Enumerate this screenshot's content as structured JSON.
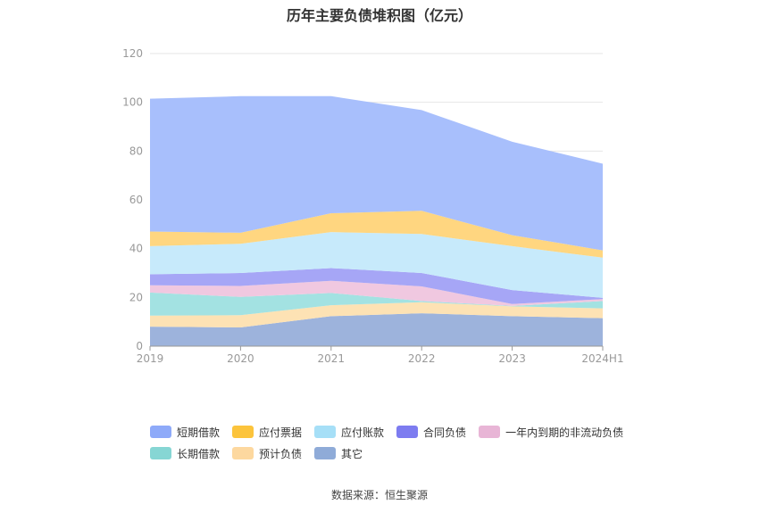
{
  "chart_data": {
    "type": "area",
    "stacked": true,
    "title": "历年主要负债堆积图（亿元）",
    "categories": [
      "2019",
      "2020",
      "2021",
      "2022",
      "2023",
      "2024H1"
    ],
    "ylim": [
      0,
      120
    ],
    "yticks": [
      0,
      20,
      40,
      60,
      80,
      100,
      120
    ],
    "grid": true,
    "legend_position": "bottom",
    "series": [
      {
        "name": "其它",
        "color": "#9db3dc",
        "values": [
          8,
          7.7,
          12.3,
          13.5,
          12.3,
          11.5
        ]
      },
      {
        "name": "预计负债",
        "color": "#fde2b4",
        "values": [
          4.5,
          5,
          4.5,
          4.5,
          4,
          4
        ]
      },
      {
        "name": "长期借款",
        "color": "#a3e2e2",
        "values": [
          9.5,
          7.5,
          5,
          0.5,
          0.2,
          3
        ]
      },
      {
        "name": "一年内到期的非流动负债",
        "color": "#f0c8e0",
        "values": [
          3,
          4.5,
          5,
          6,
          0.8,
          0.8
        ]
      },
      {
        "name": "合同负债",
        "color": "#a6a6f6",
        "values": [
          4.5,
          5.3,
          5.2,
          5.5,
          5.7,
          0.5
        ]
      },
      {
        "name": "应付账款",
        "color": "#c7eafb",
        "values": [
          11.5,
          12,
          14.8,
          16,
          18,
          16.5
        ]
      },
      {
        "name": "应付票据",
        "color": "#ffd680",
        "values": [
          6,
          4.5,
          7.7,
          9.5,
          4.5,
          3
        ]
      },
      {
        "name": "短期借款",
        "color": "#a8bffc",
        "values": [
          54.5,
          56,
          48,
          41.3,
          38.3,
          35.5
        ]
      }
    ]
  },
  "legend": {
    "row1": [
      {
        "label": "短期借款",
        "color": "#8eaaf9"
      },
      {
        "label": "应付票据",
        "color": "#fcc43c"
      },
      {
        "label": "应付账款",
        "color": "#a6dff7"
      },
      {
        "label": "合同负债",
        "color": "#7d7cf0"
      },
      {
        "label": "一年内到期的非流动负债",
        "color": "#e8b5d6"
      }
    ],
    "row2": [
      {
        "label": "长期借款",
        "color": "#86d6d4"
      },
      {
        "label": "预计负债",
        "color": "#fdd89f"
      },
      {
        "label": "其它",
        "color": "#8fabd8"
      }
    ]
  },
  "source": "数据来源：恒生聚源"
}
